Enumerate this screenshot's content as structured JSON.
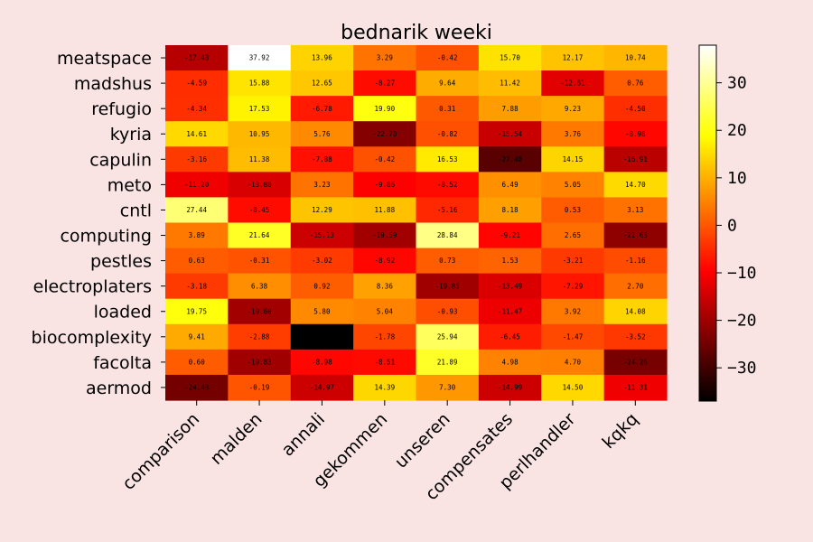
{
  "chart_data": {
    "type": "heatmap",
    "title": "bednarik weeki",
    "rows": [
      "meatspace",
      "madshus",
      "refugio",
      "kyria",
      "capulin",
      "meto",
      "cntl",
      "computing",
      "pestles",
      "electroplaters",
      "loaded",
      "biocomplexity",
      "facolta",
      "aermod"
    ],
    "columns": [
      "comparison",
      "malden",
      "annali",
      "gekommen",
      "unseren",
      "compensates",
      "perlhandler",
      "kqkq"
    ],
    "values": [
      [
        -17.43,
        37.92,
        13.96,
        3.29,
        -0.42,
        15.7,
        12.17,
        10.74
      ],
      [
        -4.59,
        15.88,
        12.65,
        -8.27,
        9.64,
        11.42,
        -12.61,
        0.76
      ],
      [
        -4.34,
        17.53,
        -6.78,
        19.9,
        0.31,
        7.88,
        9.23,
        -4.5
      ],
      [
        14.61,
        10.95,
        5.76,
        -22.7,
        -0.82,
        -15.54,
        3.76,
        -8.98
      ],
      [
        -3.16,
        11.38,
        -7.88,
        -0.42,
        16.53,
        -27.48,
        14.15,
        -16.91
      ],
      [
        -11.2,
        -13.88,
        3.23,
        -9.86,
        -8.52,
        6.49,
        5.05,
        14.7
      ],
      [
        27.44,
        -8.45,
        12.29,
        11.88,
        -5.16,
        8.18,
        0.53,
        3.13
      ],
      [
        3.89,
        21.64,
        -15.13,
        -19.59,
        28.84,
        -9.21,
        2.65,
        -21.65
      ],
      [
        0.63,
        -0.31,
        -3.02,
        -8.92,
        0.73,
        1.53,
        -3.21,
        -1.16
      ],
      [
        -3.18,
        6.38,
        0.92,
        8.36,
        -19.85,
        -13.49,
        -7.29,
        2.7
      ],
      [
        19.75,
        -19.6,
        5.8,
        5.04,
        -0.93,
        -11.47,
        3.92,
        14.08
      ],
      [
        9.41,
        -2.88,
        -37.0,
        -1.78,
        25.94,
        -6.45,
        -1.47,
        -3.52
      ],
      [
        0.6,
        -19.83,
        -8.98,
        -8.51,
        21.89,
        4.98,
        4.7,
        -24.26
      ],
      [
        -24.43,
        -0.19,
        -14.97,
        14.39,
        7.3,
        -14.99,
        14.5,
        -11.31
      ]
    ],
    "hidden_value_cells": [
      [
        11,
        2
      ]
    ],
    "colormap": "hot",
    "colorbar": {
      "min": -37,
      "max": 37.92,
      "ticks": [
        -30,
        -20,
        -10,
        0,
        10,
        20,
        30
      ]
    }
  }
}
